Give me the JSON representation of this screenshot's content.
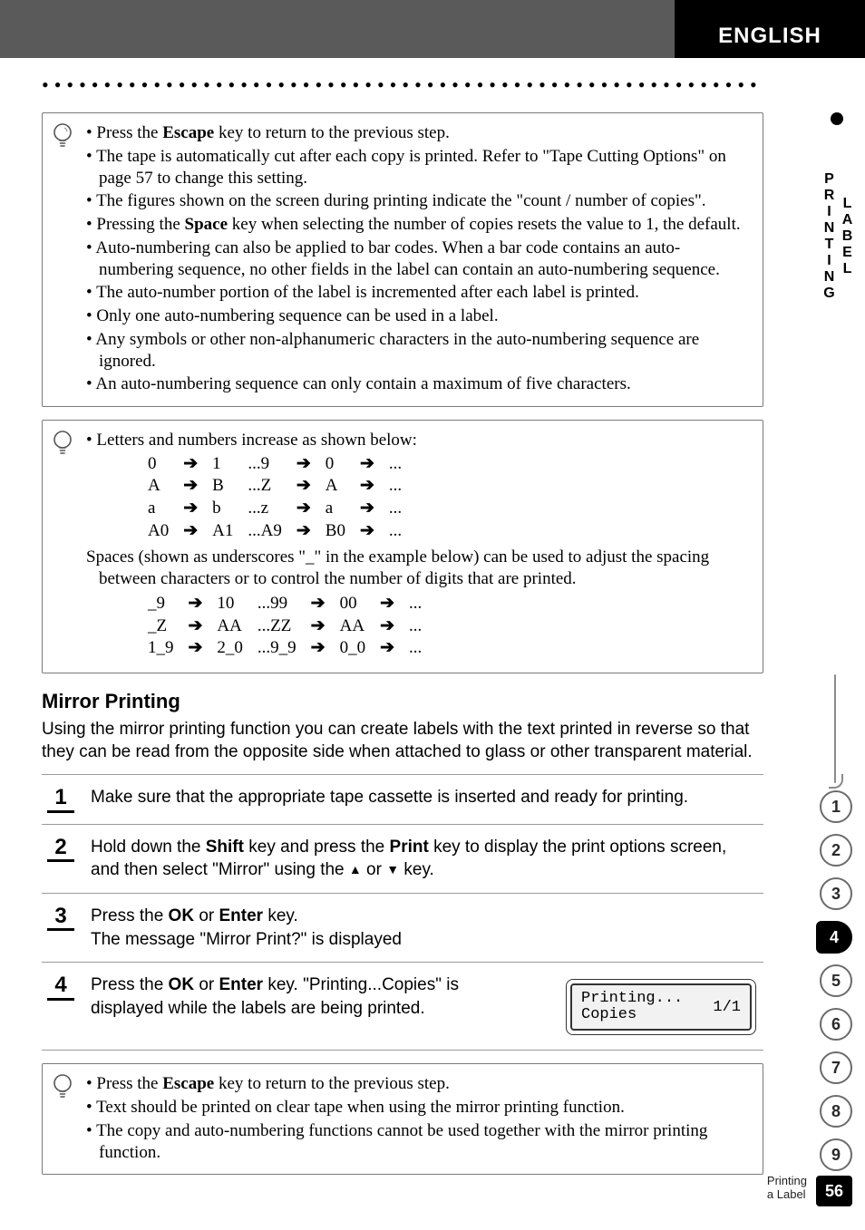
{
  "header": {
    "language": "ENGLISH"
  },
  "side": {
    "section_label": "LABEL PRINTING",
    "tabs": [
      "1",
      "2",
      "3",
      "4",
      "5",
      "6",
      "7",
      "8",
      "9"
    ],
    "active_tab_index": 3,
    "page_number": "56",
    "footer_caption": "Printing a Label"
  },
  "tips1": {
    "items": [
      {
        "pre": "Press the ",
        "bold": "Escape",
        "post": " key to return to the previous step."
      },
      {
        "text": "The tape is automatically cut after each copy is printed. Refer to \"Tape Cutting Options\" on page 57 to change this setting."
      },
      {
        "text": "The figures shown on the screen during printing indicate the \"count / number of copies\"."
      },
      {
        "pre": "Pressing the ",
        "bold": "Space",
        "post": " key when selecting the number of copies resets the value to 1, the default."
      },
      {
        "text": "Auto-numbering can also be applied to bar codes. When a bar code contains an auto-numbering sequence, no other fields in the label can contain an auto-numbering sequence."
      },
      {
        "text": "The auto-number portion of the label is incremented after each label is printed."
      },
      {
        "text": "Only one auto-numbering sequence can be used in a label."
      },
      {
        "text": "Any symbols or other non-alphanumeric characters in the auto-numbering sequence are ignored."
      },
      {
        "text": "An auto-numbering sequence can only contain a maximum of five characters."
      }
    ]
  },
  "tips2": {
    "intro": "Letters and numbers increase as shown below:",
    "rows1": [
      [
        "0",
        "1",
        "...9",
        "0",
        "..."
      ],
      [
        "A",
        "B",
        "...Z",
        "A",
        "..."
      ],
      [
        "a",
        "b",
        "...z",
        "a",
        "..."
      ],
      [
        "A0",
        "A1",
        "...A9",
        "B0",
        "..."
      ]
    ],
    "mid": "Spaces (shown as underscores \"_\" in the example below) can be used to adjust the spacing between characters or to control the number of digits that are printed.",
    "rows2": [
      [
        "_9",
        "10",
        "...99",
        "00",
        "..."
      ],
      [
        "_Z",
        "AA",
        "...ZZ",
        "AA",
        "..."
      ],
      [
        "1_9",
        "2_0",
        "...9_9",
        "0_0",
        "..."
      ]
    ]
  },
  "mirror": {
    "heading": "Mirror Printing",
    "intro": "Using the mirror printing function you can create labels with the text printed in reverse so that they can be read from the opposite side when attached to glass or other transparent material.",
    "steps": {
      "s1": {
        "n": "1",
        "text": "Make sure that the appropriate tape cassette is inserted and ready for printing."
      },
      "s2": {
        "n": "2",
        "pre": "Hold down the ",
        "b1": "Shift",
        "mid1": " key and press the ",
        "b2": "Print",
        "mid2": " key to display the print options screen, and then select \"Mirror\" using the ",
        "tail": " key."
      },
      "s3": {
        "n": "3",
        "pre": "Press the ",
        "b1": "OK",
        "or": " or ",
        "b2": "Enter",
        "post": " key.",
        "line2": "The message \"Mirror Print?\" is displayed"
      },
      "s4": {
        "n": "4",
        "pre": "Press the ",
        "b1": "OK",
        "or": " or ",
        "b2": "Enter",
        "post": " key. \"Printing...Copies\" is displayed while the labels are being printed."
      }
    },
    "lcd": {
      "line1": "Printing...",
      "line2": "Copies",
      "count": "1/1"
    }
  },
  "tips3": {
    "items": [
      {
        "pre": "Press the ",
        "bold": "Escape",
        "post": " key to return to the previous step."
      },
      {
        "text": "Text should be printed on clear tape when using the mirror printing function."
      },
      {
        "text": "The copy and auto-numbering functions cannot be used together with the mirror printing function."
      }
    ]
  },
  "glyphs": {
    "arrow": "➔",
    "tri_up": "▲",
    "tri_down": "▼"
  }
}
